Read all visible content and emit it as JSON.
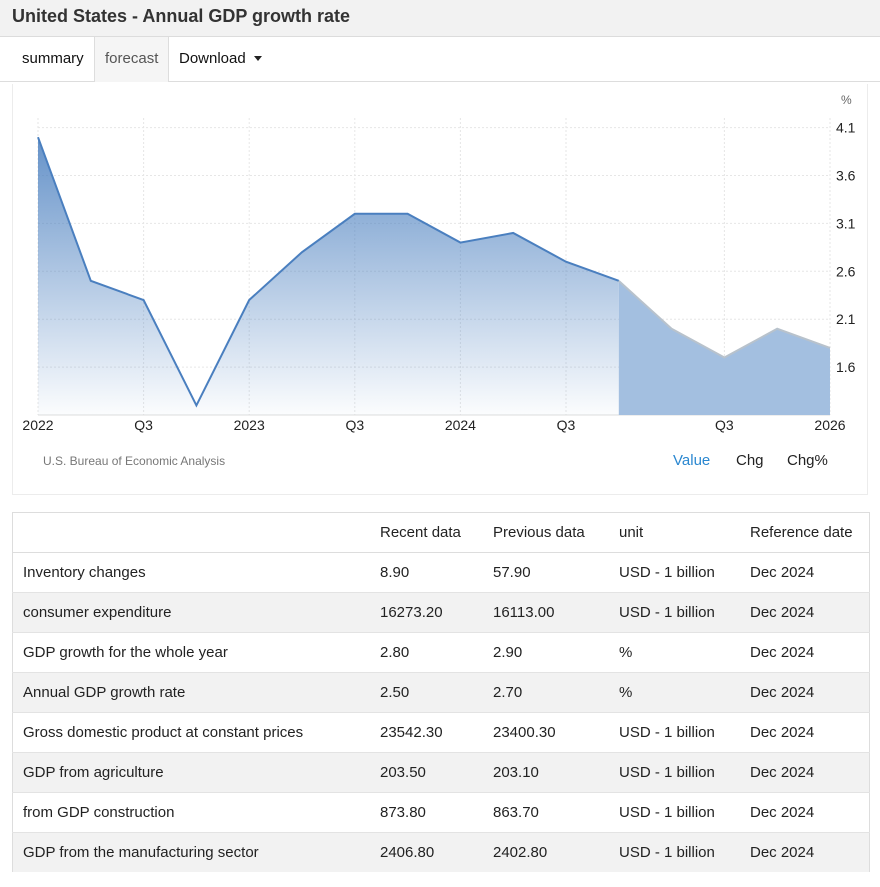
{
  "header": {
    "title": "United States - Annual GDP growth rate"
  },
  "tabs": [
    {
      "label": "summary"
    },
    {
      "label": "forecast"
    },
    {
      "label": "Download"
    }
  ],
  "chart_data": {
    "type": "area",
    "unit_label": "%",
    "y_ticks": [
      "4.1",
      "3.6",
      "3.1",
      "2.6",
      "2.1",
      "1.6"
    ],
    "x_ticks": [
      "2022",
      "Q3",
      "2023",
      "Q3",
      "2024",
      "Q3",
      "Q3",
      "2026"
    ],
    "series": [
      {
        "values": [
          4.0,
          2.5,
          2.3,
          1.2,
          2.3,
          2.8,
          3.2,
          3.2,
          2.9,
          3.0,
          2.7,
          2.5
        ]
      }
    ],
    "forecast_values": [
      2.5,
      2.0,
      1.7,
      2.0,
      1.8
    ],
    "ylim": [
      1.1,
      4.2
    ],
    "grid": true,
    "colors": {
      "line": "#4a7fbf",
      "forecast_line": "#b8c2cc",
      "forecast_fill": "#a3bfe0"
    },
    "source": "U.S. Bureau of Economic Analysis",
    "modes": [
      "Value",
      "Chg",
      "Chg%"
    ]
  },
  "table": {
    "headers": [
      "",
      "Recent data",
      "Previous data",
      "unit",
      "Reference date"
    ],
    "rows": [
      [
        "Inventory changes",
        "8.90",
        "57.90",
        "USD - 1 billion",
        "Dec 2024"
      ],
      [
        "consumer expenditure",
        "16273.20",
        "16113.00",
        "USD - 1 billion",
        "Dec 2024"
      ],
      [
        "GDP growth for the whole year",
        "2.80",
        "2.90",
        "%",
        "Dec 2024"
      ],
      [
        "Annual GDP growth rate",
        "2.50",
        "2.70",
        "%",
        "Dec 2024"
      ],
      [
        "Gross domestic product at constant prices",
        "23542.30",
        "23400.30",
        "USD - 1 billion",
        "Dec 2024"
      ],
      [
        "GDP from agriculture",
        "203.50",
        "203.10",
        "USD - 1 billion",
        "Dec 2024"
      ],
      [
        "from GDP construction",
        "873.80",
        "863.70",
        "USD - 1 billion",
        "Dec 2024"
      ],
      [
        "GDP from the manufacturing sector",
        "2406.80",
        "2402.80",
        "USD - 1 billion",
        "Dec 2024"
      ]
    ]
  }
}
